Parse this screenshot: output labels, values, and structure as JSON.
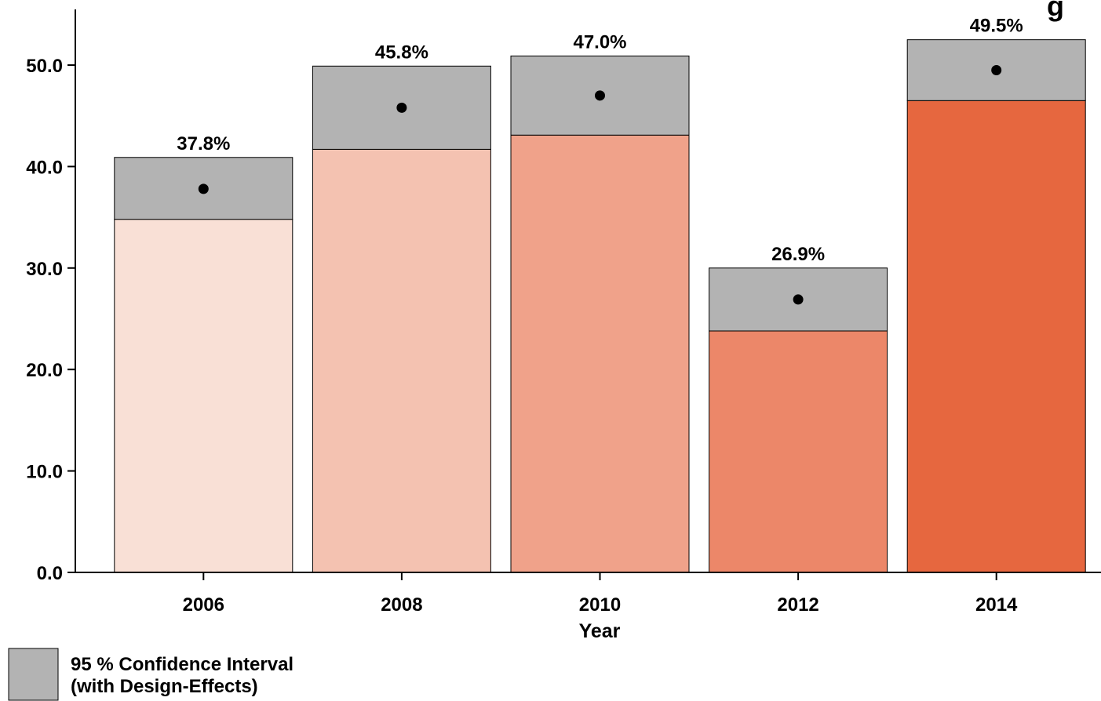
{
  "chart_data": {
    "type": "bar",
    "title_fragment": "g",
    "xlabel": "Year",
    "ylabel": "",
    "ylim": [
      0,
      50
    ],
    "yticks": [
      "0.0",
      "10.0",
      "20.0",
      "30.0",
      "40.0",
      "50.0"
    ],
    "ytick_values": [
      0,
      10,
      20,
      30,
      40,
      50
    ],
    "categories": [
      "2006",
      "2008",
      "2010",
      "2012",
      "2014"
    ],
    "values": [
      37.8,
      45.8,
      47.0,
      26.9,
      49.5
    ],
    "value_labels": [
      "37.8%",
      "45.8%",
      "47.0%",
      "26.9%",
      "49.5%"
    ],
    "ci_lower": [
      34.8,
      41.7,
      43.1,
      23.8,
      46.5
    ],
    "ci_upper": [
      40.9,
      49.9,
      50.9,
      30.0,
      52.5
    ],
    "bar_colors": [
      "#f9e0d6",
      "#f4c2b1",
      "#f0a28a",
      "#ec8769",
      "#e6673f"
    ],
    "ci_color": "#b3b3b3",
    "point_color": "#000000",
    "grid": false,
    "legend": {
      "placement": "bottom-left",
      "entries": [
        {
          "line1": "95 % Confidence Interval",
          "line2": "(with Design-Effects)",
          "color": "#b3b3b3"
        }
      ]
    }
  }
}
